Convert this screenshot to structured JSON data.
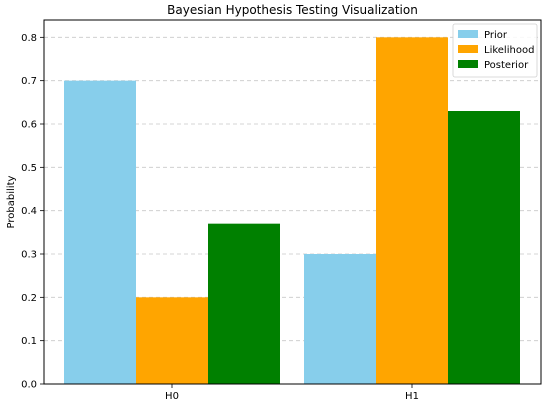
{
  "chart_data": {
    "type": "bar",
    "title": "Bayesian Hypothesis Testing Visualization",
    "xlabel": "",
    "ylabel": "Probability",
    "categories": [
      "H0",
      "H1"
    ],
    "series": [
      {
        "name": "Prior",
        "values": [
          0.7,
          0.3
        ],
        "color": "#87ceeb"
      },
      {
        "name": "Likelihood",
        "values": [
          0.2,
          0.8
        ],
        "color": "#ffa500"
      },
      {
        "name": "Posterior",
        "values": [
          0.37,
          0.63
        ],
        "color": "#008000"
      }
    ],
    "ylim": [
      0,
      0.84
    ],
    "yticks": [
      0.0,
      0.1,
      0.2,
      0.3,
      0.4,
      0.5,
      0.6,
      0.7,
      0.8
    ],
    "ytick_labels": [
      "0.0",
      "0.1",
      "0.2",
      "0.3",
      "0.4",
      "0.5",
      "0.6",
      "0.7",
      "0.8"
    ],
    "grid": "y-dashed",
    "legend_placement": "top-right"
  }
}
